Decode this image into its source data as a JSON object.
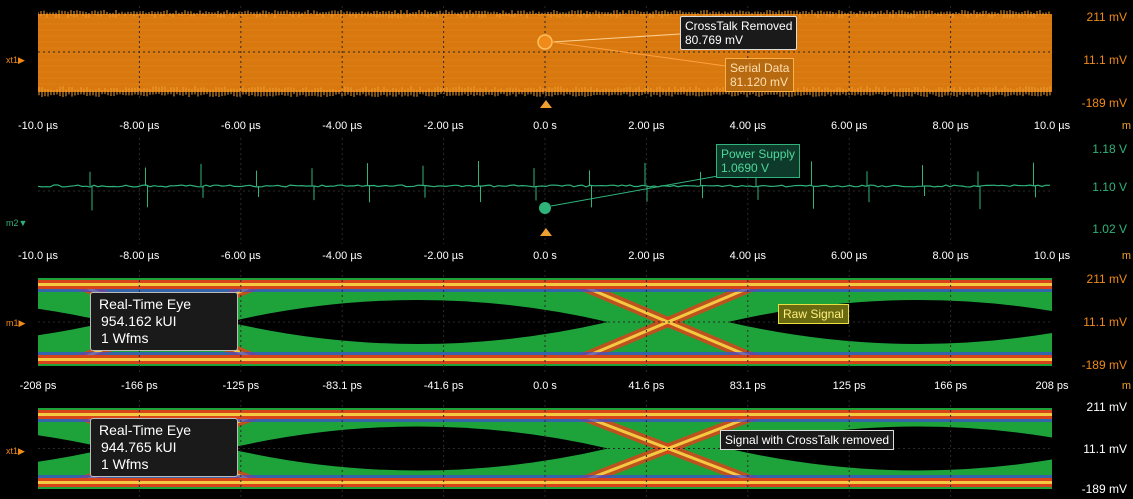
{
  "panes": [
    {
      "id": "crosstalk",
      "channel": "xt1",
      "color": "#f08a18",
      "y_top": "211 mV",
      "y_mid": "11.1 mV",
      "y_bot": "-189 mV",
      "callouts": [
        {
          "title": "CrossTalk Removed",
          "value": "80.769 mV"
        },
        {
          "title": "Serial Data",
          "value": "81.120 mV"
        }
      ]
    },
    {
      "id": "power",
      "channel": "m2",
      "color": "#2fb37a",
      "y_top": "1.18 V",
      "y_mid": "1.10 V",
      "y_bot": "1.02 V",
      "callouts": [
        {
          "title": "Power Supply",
          "value": "1.0690 V"
        }
      ]
    },
    {
      "id": "raw-eye",
      "channel": "m1",
      "y_top": "211 mV",
      "y_mid": "11.1 mV",
      "y_bot": "-189 mV",
      "eye": {
        "title": "Real-Time Eye",
        "ui": "954.162 kUI",
        "wfms": "1 Wfms"
      },
      "label": "Raw Signal"
    },
    {
      "id": "clean-eye",
      "channel": "xt1",
      "y_top": "211 mV",
      "y_mid": "11.1 mV",
      "y_bot": "-189 mV",
      "eye": {
        "title": "Real-Time Eye",
        "ui": "944.765 kUI",
        "wfms": "1 Wfms"
      },
      "label": "Signal with CrossTalk removed"
    }
  ],
  "xaxis_time": [
    "-10.0 µs",
    "-8.00 µs",
    "-6.00 µs",
    "-4.00 µs",
    "-2.00 µs",
    "0.0 s",
    "2.00 µs",
    "4.00 µs",
    "6.00 µs",
    "8.00 µs",
    "10.0 µs"
  ],
  "xaxis_eye": [
    "-208 ps",
    "-166 ps",
    "-125 ps",
    "-83.1 ps",
    "-41.6 ps",
    "0.0 s",
    "41.6 ps",
    "83.1 ps",
    "125 ps",
    "166 ps",
    "208 ps"
  ],
  "axis_unit_glyph": "m"
}
